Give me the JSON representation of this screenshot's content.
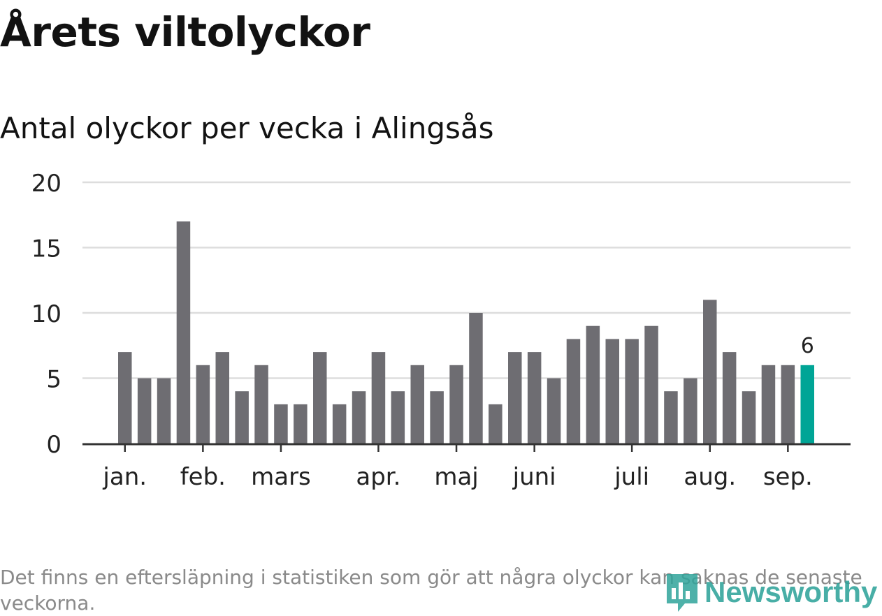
{
  "title": "Årets viltolyckor",
  "subtitle": "Antal olyckor per vecka i Alingsås",
  "footnote": "Det finns en eftersläpning i statistiken som gör att några olyckor kan saknas de senaste veckorna.",
  "logo": {
    "text": "Newsworthy",
    "icon": "newsworthy-logo-icon",
    "color": "#2fa39a"
  },
  "chart_data": {
    "type": "bar",
    "ylim": [
      0,
      20
    ],
    "yticks": [
      0,
      5,
      10,
      15,
      20
    ],
    "grid": true,
    "bar_color": "#6e6d72",
    "highlight_color": "#00a596",
    "highlight_index": 35,
    "highlight_label": "6",
    "month_labels": [
      {
        "label": "jan.",
        "week": 0
      },
      {
        "label": "feb.",
        "week": 4
      },
      {
        "label": "mars",
        "week": 8
      },
      {
        "label": "apr.",
        "week": 13
      },
      {
        "label": "maj",
        "week": 17
      },
      {
        "label": "juni",
        "week": 21
      },
      {
        "label": "juli",
        "week": 26
      },
      {
        "label": "aug.",
        "week": 30
      },
      {
        "label": "sep.",
        "week": 34
      }
    ],
    "values": [
      7,
      5,
      5,
      17,
      6,
      7,
      4,
      6,
      3,
      3,
      7,
      3,
      4,
      7,
      4,
      6,
      4,
      6,
      10,
      3,
      7,
      7,
      5,
      8,
      9,
      8,
      8,
      9,
      4,
      5,
      11,
      7,
      4,
      6,
      6,
      6
    ]
  }
}
